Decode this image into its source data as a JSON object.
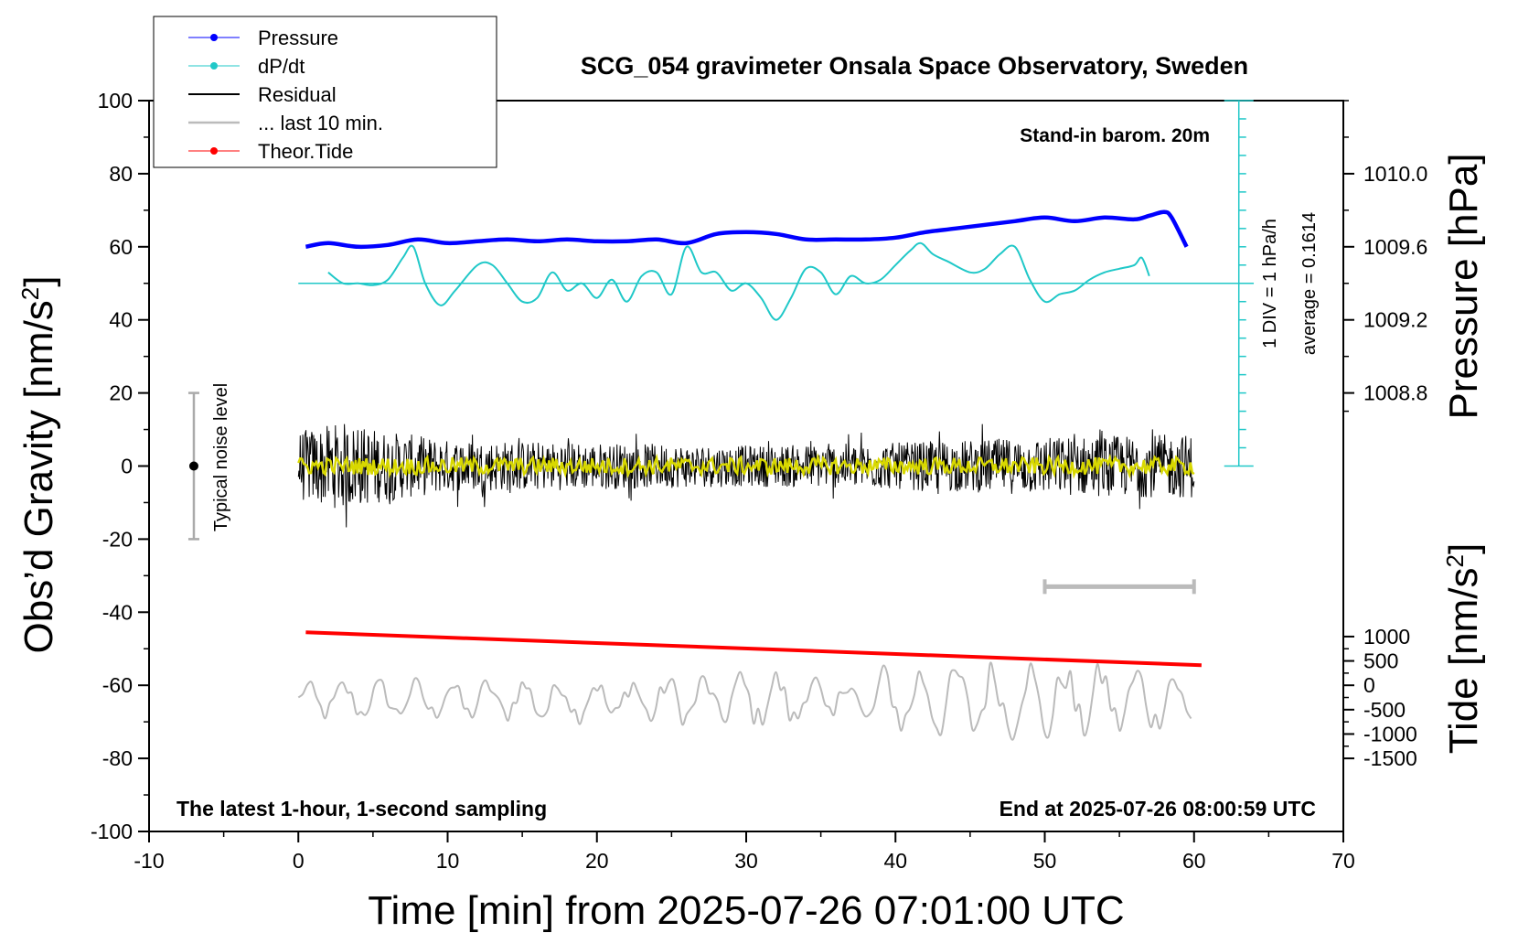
{
  "chart_data": {
    "type": "line",
    "title": "SCG_054 gravimeter Onsala Space Observatory, Sweden",
    "xlabel": "Time [min] from 2025-07-26 07:01:00 UTC",
    "ylabel": "Obs’d Gravity [nm/s²]",
    "ylabel_parts": {
      "main": "Obs’d Gravity [nm/s",
      "sup": "2",
      "close": "]"
    },
    "xlim": [
      -10,
      70
    ],
    "ylim": [
      -100,
      100
    ],
    "x_ticks": [
      -10,
      0,
      10,
      20,
      30,
      40,
      50,
      60,
      70
    ],
    "x_tick_labels": [
      "-10",
      "0",
      "10",
      "20",
      "30",
      "40",
      "50",
      "60",
      "70"
    ],
    "y_ticks": [
      -100,
      -80,
      -60,
      -40,
      -20,
      0,
      20,
      40,
      60,
      80,
      100
    ],
    "y_tick_labels": [
      "-100",
      "-80",
      "-60",
      "-40",
      "-20",
      "0",
      "20",
      "40",
      "60",
      "80",
      "100"
    ],
    "pressure_axis": {
      "label": "Pressure [hPa]",
      "ticks": [
        1008.8,
        1009.2,
        1009.6,
        1010.0
      ],
      "tick_labels": [
        "1008.8",
        "1009.2",
        "1009.6",
        "1010.0"
      ],
      "gravity_of_1010": 80,
      "nm_per_hpa": 50
    },
    "tide_axis": {
      "label_parts": {
        "main": "Tide [nm/s",
        "sup": "2",
        "close": "]"
      },
      "ticks": [
        1000,
        500,
        0,
        -500,
        -1000,
        -1500
      ],
      "tick_labels": [
        "1000",
        "500",
        "0",
        "-500",
        "-1000",
        "-1500"
      ],
      "gravity_of_zero": -60,
      "gravity_per_500": 6.667
    },
    "dpdt_scale": {
      "baseline_gravity": 50,
      "axis_x": 63,
      "axis_top": 100,
      "axis_bottom": 0,
      "tick_step": 5,
      "label": "1 DIV = 1 hPa/h",
      "average_label": "average = 0.1614"
    },
    "annotations": {
      "barometer": "Stand-in barom. 20m",
      "sampling": "The latest 1-hour, 1-second sampling",
      "end_time": "End at 2025-07-26 08:00:59 UTC",
      "noise": "Typical noise level"
    },
    "noise_bar": {
      "x": -7,
      "center": 0,
      "low": -20,
      "high": 20
    },
    "last10_bracket": {
      "x_start": 50,
      "x_end": 60,
      "gravity": -33
    },
    "legend": [
      {
        "name": "Pressure",
        "color": "#0000ff",
        "marker": true
      },
      {
        "name": "dP/dt",
        "color": "#20c8c8",
        "marker": true
      },
      {
        "name": "Residual",
        "color": "#000000",
        "marker": false
      },
      {
        "name": "... last 10 min.",
        "color": "#bbbbbb",
        "marker": false
      },
      {
        "name": "Theor.Tide",
        "color": "#ff0000",
        "marker": true
      }
    ],
    "series": [
      {
        "name": "Pressure",
        "unit": "hPa",
        "color": "#0000ff",
        "x": [
          0.5,
          2,
          4,
          6,
          8,
          10,
          12,
          14,
          16,
          18,
          20,
          22,
          24,
          26,
          28,
          30,
          32,
          34,
          36,
          38,
          40,
          42,
          44,
          46,
          48,
          50,
          52,
          54,
          56,
          57,
          58,
          58.5,
          59.5
        ],
        "values": [
          1009.6,
          1009.62,
          1009.6,
          1009.61,
          1009.64,
          1009.62,
          1009.63,
          1009.64,
          1009.63,
          1009.64,
          1009.63,
          1009.63,
          1009.64,
          1009.62,
          1009.67,
          1009.68,
          1009.67,
          1009.64,
          1009.64,
          1009.64,
          1009.65,
          1009.68,
          1009.7,
          1009.72,
          1009.74,
          1009.76,
          1009.74,
          1009.76,
          1009.75,
          1009.77,
          1009.79,
          1009.76,
          1009.6
        ]
      },
      {
        "name": "dP/dt",
        "unit": "gravity-axis units (baseline 50)",
        "color": "#20c8c8",
        "x": [
          2,
          3,
          4,
          5,
          6,
          7,
          7.7,
          8.5,
          9.5,
          10.5,
          12,
          13,
          14,
          15,
          16,
          17,
          18,
          19,
          20,
          21,
          22,
          23,
          24,
          25,
          26,
          27,
          28,
          29,
          30,
          31,
          32,
          33,
          34,
          35,
          36,
          37,
          38,
          39,
          40,
          41,
          41.7,
          42.5,
          43.5,
          45,
          46,
          47,
          48,
          49,
          50,
          51,
          52,
          53,
          54,
          55,
          56,
          56.5,
          57
        ],
        "values": [
          53,
          50,
          50,
          49.5,
          51,
          57,
          60,
          50,
          44,
          48,
          55,
          55,
          50,
          45,
          46,
          53,
          48,
          50,
          46,
          51,
          45,
          52,
          53,
          47,
          60,
          53,
          53,
          48,
          50,
          46,
          40,
          46,
          54,
          53,
          47,
          52,
          50,
          51,
          55,
          59,
          61,
          58,
          56,
          53,
          54,
          58,
          60,
          51,
          45,
          47,
          48,
          51,
          53,
          54,
          55,
          57,
          52
        ]
      },
      {
        "name": "Residual",
        "unit": "nm/s²",
        "color": "#000000",
        "x_start": 0,
        "x_end": 60,
        "amplitude_envelope": [
          [
            0,
            12
          ],
          [
            3,
            15
          ],
          [
            6,
            12
          ],
          [
            10,
            9
          ],
          [
            20,
            8
          ],
          [
            30,
            7
          ],
          [
            40,
            8
          ],
          [
            50,
            10
          ],
          [
            60,
            11
          ]
        ],
        "center": 0
      },
      {
        "name": "Residual (smoothed)",
        "unit": "nm/s²",
        "color": "#d8d800",
        "x_start": 0,
        "x_end": 60,
        "amplitude": 3
      },
      {
        "name": "... last 10 min.",
        "unit": "gravity-axis units",
        "color": "#bbbbbb",
        "x_start": 0,
        "x_end": 59.8,
        "center": -64,
        "amplitude_envelope": [
          [
            0,
            5
          ],
          [
            20,
            6
          ],
          [
            40,
            9
          ],
          [
            50,
            11
          ],
          [
            60,
            8
          ]
        ]
      },
      {
        "name": "Theor.Tide",
        "unit": "gravity-axis units",
        "color": "#ff0000",
        "x": [
          0.5,
          60.5
        ],
        "values": [
          -45.5,
          -54.5
        ]
      }
    ]
  }
}
